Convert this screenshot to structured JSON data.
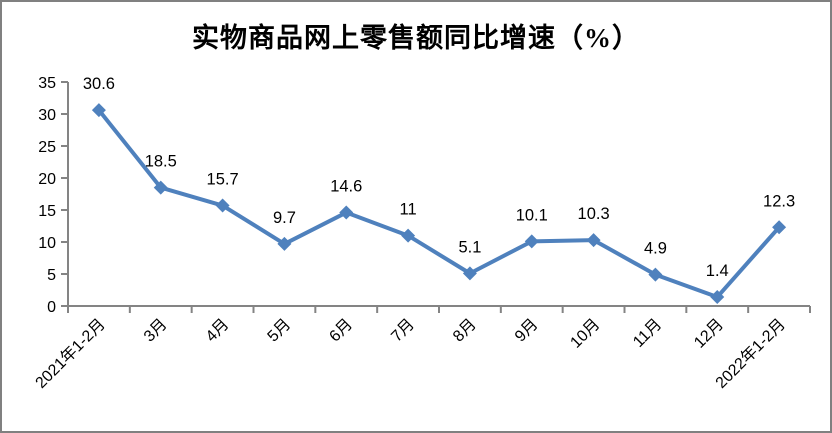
{
  "chart_data": {
    "type": "line",
    "title": "实物商品网上零售额同比增速（%）",
    "categories": [
      "2021年1-2月",
      "3月",
      "4月",
      "5月",
      "6月",
      "7月",
      "8月",
      "9月",
      "10月",
      "11月",
      "12月",
      "2022年1-2月"
    ],
    "values": [
      30.6,
      18.5,
      15.7,
      9.7,
      14.6,
      11,
      5.1,
      10.1,
      10.3,
      4.9,
      1.4,
      12.3
    ],
    "data_labels": [
      "30.6",
      "18.5",
      "15.7",
      "9.7",
      "14.6",
      "11",
      "5.1",
      "10.1",
      "10.3",
      "4.9",
      "1.4",
      "12.3"
    ],
    "yticks": [
      0,
      5,
      10,
      15,
      20,
      25,
      30,
      35
    ],
    "ylim": [
      0,
      35
    ],
    "xlabel": "",
    "ylabel": "",
    "grid": false,
    "legend_position": "none",
    "marker": "diamond",
    "colors": {
      "line": "#4F81BD",
      "marker": "#4F81BD",
      "axis": "#848484",
      "text": "#000000",
      "frame_border": "#808080",
      "background": "#FFFFFF"
    }
  }
}
